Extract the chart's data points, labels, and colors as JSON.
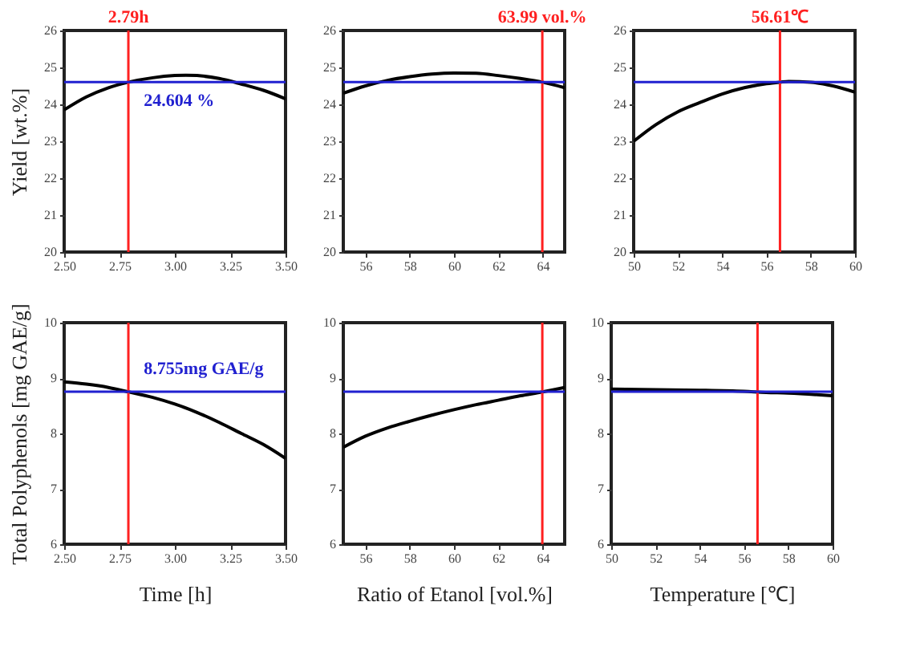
{
  "chart_data": [
    {
      "type": "line",
      "ylabel": "Yield [wt.%]",
      "xlim": [
        2.5,
        3.5
      ],
      "xticks": [
        {
          "value": 2.5,
          "label": "2.50"
        },
        {
          "value": 2.75,
          "label": "2.75"
        },
        {
          "value": 3,
          "label": "3.00"
        },
        {
          "value": 3.25,
          "label": "3.25"
        },
        {
          "value": 3.5,
          "label": "3.50"
        }
      ],
      "ylim": [
        20,
        26
      ],
      "yticks": [
        20,
        21,
        22,
        23,
        24,
        25,
        26
      ],
      "series": [
        {
          "color": "#000000",
          "x": [
            2.5,
            2.6,
            2.7,
            2.79,
            2.9,
            3.0,
            3.05,
            3.1,
            3.2,
            3.3,
            3.4,
            3.5
          ],
          "values": [
            23.85,
            24.2,
            24.45,
            24.6,
            24.72,
            24.78,
            24.79,
            24.78,
            24.7,
            24.55,
            24.38,
            24.15
          ]
        }
      ],
      "ref_lines": [
        {
          "axis": "x",
          "value": 2.79,
          "label": "2.79h",
          "color": "#ff2020"
        },
        {
          "axis": "y",
          "value": 24.604,
          "label": "24.604 %",
          "color": "#2020d0"
        }
      ]
    },
    {
      "type": "line",
      "xlim": [
        55,
        65
      ],
      "xticks": [
        56,
        58,
        60,
        62,
        64
      ],
      "ylim": [
        20,
        26
      ],
      "yticks": [
        20,
        21,
        22,
        23,
        24,
        25,
        26
      ],
      "series": [
        {
          "color": "#000000",
          "x": [
            55,
            56,
            57,
            58,
            59,
            60,
            61,
            62,
            63,
            64,
            65
          ],
          "values": [
            24.3,
            24.5,
            24.65,
            24.75,
            24.82,
            24.85,
            24.84,
            24.78,
            24.7,
            24.6,
            24.45
          ]
        }
      ],
      "ref_lines": [
        {
          "axis": "x",
          "value": 63.99,
          "label": "63.99 vol.%",
          "color": "#ff2020"
        },
        {
          "axis": "y",
          "value": 24.604,
          "color": "#2020d0"
        }
      ]
    },
    {
      "type": "line",
      "xlim": [
        50,
        60
      ],
      "xticks": [
        50,
        52,
        54,
        56,
        58,
        60
      ],
      "ylim": [
        20,
        26
      ],
      "yticks": [
        20,
        21,
        22,
        23,
        24,
        25,
        26
      ],
      "series": [
        {
          "color": "#000000",
          "x": [
            50,
            51,
            52,
            53,
            54,
            55,
            56,
            56.61,
            57,
            58,
            59,
            60
          ],
          "values": [
            23.0,
            23.45,
            23.8,
            24.05,
            24.28,
            24.45,
            24.56,
            24.6,
            24.62,
            24.6,
            24.5,
            24.33
          ]
        }
      ],
      "ref_lines": [
        {
          "axis": "x",
          "value": 56.61,
          "label": "56.61℃",
          "color": "#ff2020"
        },
        {
          "axis": "y",
          "value": 24.604,
          "color": "#2020d0"
        }
      ]
    },
    {
      "type": "line",
      "xlabel": "Time [h]",
      "ylabel": "Total Polyphenols [mg GAE/g]",
      "xlim": [
        2.5,
        3.5
      ],
      "xticks": [
        {
          "value": 2.5,
          "label": "2.50"
        },
        {
          "value": 2.75,
          "label": "2.75"
        },
        {
          "value": 3,
          "label": "3.00"
        },
        {
          "value": 3.25,
          "label": "3.25"
        },
        {
          "value": 3.5,
          "label": "3.50"
        }
      ],
      "ylim": [
        6,
        10
      ],
      "yticks": [
        6,
        7,
        8,
        9,
        10
      ],
      "series": [
        {
          "color": "#000000",
          "x": [
            2.5,
            2.6,
            2.7,
            2.79,
            2.9,
            3.0,
            3.1,
            3.2,
            3.3,
            3.4,
            3.5
          ],
          "values": [
            8.93,
            8.89,
            8.83,
            8.75,
            8.65,
            8.53,
            8.38,
            8.2,
            8.0,
            7.8,
            7.55
          ]
        }
      ],
      "ref_lines": [
        {
          "axis": "x",
          "value": 2.79,
          "color": "#ff2020"
        },
        {
          "axis": "y",
          "value": 8.755,
          "label": "8.755mg GAE/g",
          "color": "#2020d0"
        }
      ]
    },
    {
      "type": "line",
      "xlabel": "Ratio of Etanol [vol.%]",
      "xlim": [
        55,
        65
      ],
      "xticks": [
        56,
        58,
        60,
        62,
        64
      ],
      "ylim": [
        6,
        10
      ],
      "yticks": [
        6,
        7,
        8,
        9,
        10
      ],
      "series": [
        {
          "color": "#000000",
          "x": [
            55,
            56,
            57,
            58,
            59,
            60,
            61,
            62,
            63,
            64,
            65
          ],
          "values": [
            7.75,
            7.95,
            8.1,
            8.22,
            8.33,
            8.43,
            8.52,
            8.6,
            8.68,
            8.75,
            8.83
          ]
        }
      ],
      "ref_lines": [
        {
          "axis": "x",
          "value": 63.99,
          "color": "#ff2020"
        },
        {
          "axis": "y",
          "value": 8.755,
          "color": "#2020d0"
        }
      ]
    },
    {
      "type": "line",
      "xlabel": "Temperature [℃]",
      "xlim": [
        50,
        60
      ],
      "xticks": [
        50,
        52,
        54,
        56,
        58,
        60
      ],
      "ylim": [
        6,
        10
      ],
      "yticks": [
        6,
        7,
        8,
        9,
        10
      ],
      "series": [
        {
          "color": "#000000",
          "x": [
            50,
            52,
            54,
            56,
            57,
            58,
            60
          ],
          "values": [
            8.8,
            8.79,
            8.78,
            8.76,
            8.74,
            8.73,
            8.68
          ]
        }
      ],
      "ref_lines": [
        {
          "axis": "x",
          "value": 56.61,
          "color": "#ff2020"
        },
        {
          "axis": "y",
          "value": 8.755,
          "color": "#2020d0"
        }
      ]
    }
  ]
}
